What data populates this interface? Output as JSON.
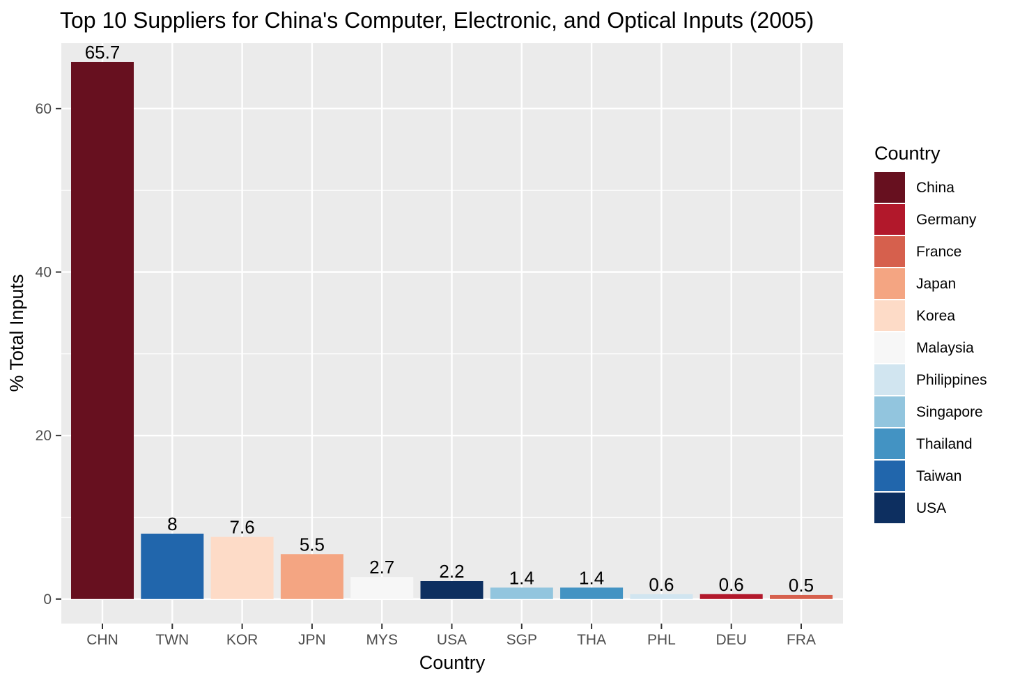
{
  "chart_data": {
    "type": "bar",
    "title": "Top 10 Suppliers for China's Computer, Electronic, and Optical Inputs (2005)",
    "xlabel": "Country",
    "ylabel": "% Total Inputs",
    "categories": [
      "CHN",
      "TWN",
      "KOR",
      "JPN",
      "MYS",
      "USA",
      "SGP",
      "THA",
      "PHL",
      "DEU",
      "FRA"
    ],
    "values": [
      65.7,
      8,
      7.6,
      5.5,
      2.7,
      2.2,
      1.4,
      1.4,
      0.6,
      0.6,
      0.5
    ],
    "data_labels": [
      "65.7",
      "8",
      "7.6",
      "5.5",
      "2.7",
      "2.2",
      "1.4",
      "1.4",
      "0.6",
      "0.6",
      "0.5"
    ],
    "bar_countries": [
      "China",
      "Taiwan",
      "Korea",
      "Japan",
      "Malaysia",
      "USA",
      "Singapore",
      "Thailand",
      "Philippines",
      "Germany",
      "France"
    ],
    "ylim": [
      -3,
      68
    ],
    "y_ticks": [
      0,
      20,
      40,
      60
    ],
    "y_tick_labels": [
      "0",
      "20",
      "40",
      "60"
    ],
    "grid": true,
    "panel_background": "#ebebeb",
    "legend": {
      "title": "Country",
      "position": "right",
      "entries": [
        {
          "label": "China",
          "color": "#67101f"
        },
        {
          "label": "Germany",
          "color": "#b2182b"
        },
        {
          "label": "France",
          "color": "#d6604d"
        },
        {
          "label": "Japan",
          "color": "#f4a582"
        },
        {
          "label": "Korea",
          "color": "#fddbc7"
        },
        {
          "label": "Malaysia",
          "color": "#f7f7f7"
        },
        {
          "label": "Philippines",
          "color": "#d1e5f0"
        },
        {
          "label": "Singapore",
          "color": "#92c5de"
        },
        {
          "label": "Thailand",
          "color": "#4393c3"
        },
        {
          "label": "Taiwan",
          "color": "#2166ac"
        },
        {
          "label": "USA",
          "color": "#0d2f60"
        }
      ]
    }
  }
}
